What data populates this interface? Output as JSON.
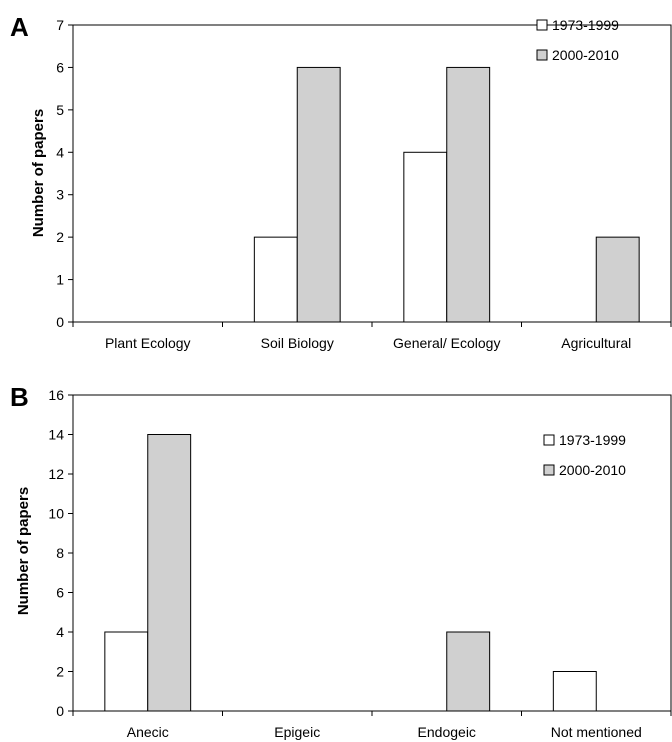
{
  "chart_data": [
    {
      "panel": "A",
      "type": "bar",
      "categories": [
        "Plant Ecology",
        "Soil Biology",
        "General/ Ecology",
        "Agricultural"
      ],
      "series": [
        {
          "name": "1973-1999",
          "values": [
            0,
            2,
            4,
            0
          ],
          "color": "#ffffff"
        },
        {
          "name": "2000-2010",
          "values": [
            0,
            6,
            6,
            2
          ],
          "color": "#d0d0d0"
        }
      ],
      "ylabel": "Number of papers",
      "ylim": [
        0,
        7
      ],
      "yticks": [
        0,
        1,
        2,
        3,
        4,
        5,
        6,
        7
      ],
      "legend_position": "top-right",
      "grid": false
    },
    {
      "panel": "B",
      "type": "bar",
      "categories": [
        "Anecic",
        "Epigeic",
        "Endogeic",
        "Not mentioned"
      ],
      "series": [
        {
          "name": "1973-1999",
          "values": [
            4,
            0,
            0,
            2
          ],
          "color": "#ffffff"
        },
        {
          "name": "2000-2010",
          "values": [
            14,
            0,
            4,
            0
          ],
          "color": "#d0d0d0"
        }
      ],
      "ylabel": "Number of papers",
      "ylim": [
        0,
        16
      ],
      "yticks": [
        0,
        2,
        4,
        6,
        8,
        10,
        12,
        14,
        16
      ],
      "legend_position": "top-right",
      "grid": false
    }
  ]
}
